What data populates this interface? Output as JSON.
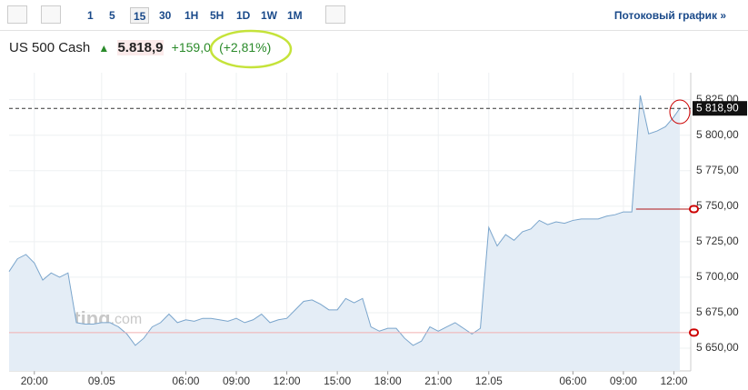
{
  "header": {
    "intervals": [
      "1",
      "5",
      "15",
      "30",
      "1H",
      "5H",
      "1D",
      "1W",
      "1M"
    ],
    "active_interval": 2,
    "stream_link": "Потоковый график »",
    "instrument": "US 500 Cash",
    "price": "5.818,9",
    "change": "+159,0",
    "change_pct": "(+2,81%)"
  },
  "chart_data": {
    "type": "area",
    "watermark": [
      "Investing",
      ".com"
    ],
    "x": [
      -3,
      -2,
      -1,
      0,
      1,
      2,
      3,
      4,
      5,
      6,
      7,
      8,
      9,
      10,
      11,
      12,
      13,
      14,
      15,
      16,
      17,
      18,
      19,
      20,
      21,
      22,
      23,
      24,
      25,
      26,
      27,
      28,
      29,
      30,
      31,
      32,
      33,
      34,
      35,
      36,
      37,
      38,
      39,
      40,
      41,
      42,
      43,
      44,
      45,
      46,
      47,
      48,
      49,
      50,
      51,
      52,
      53,
      54,
      55,
      56,
      57,
      58,
      59,
      60,
      61,
      62,
      63,
      64,
      65,
      66,
      67,
      68,
      69,
      70,
      71,
      72,
      73,
      74,
      75,
      76,
      76.7
    ],
    "series": [
      {
        "name": "US 500 Cash",
        "color": "#7aa5cc",
        "fill": "#e4edf6",
        "values": [
          5704,
          5713,
          5716,
          5710,
          5698,
          5703,
          5700,
          5703,
          5668,
          5667,
          5667,
          5668,
          5668,
          5665,
          5660,
          5652,
          5657,
          5665,
          5668,
          5674,
          5668,
          5670,
          5669,
          5671,
          5671,
          5670,
          5669,
          5671,
          5668,
          5670,
          5674,
          5668,
          5670,
          5671,
          5677,
          5683,
          5684,
          5681,
          5677,
          5677,
          5685,
          5682,
          5685,
          5665,
          5662,
          5664,
          5664,
          5657,
          5652,
          5655,
          5665,
          5662,
          5665,
          5668,
          5664,
          5660,
          5664,
          5735,
          5722,
          5730,
          5726,
          5732,
          5734,
          5740,
          5737,
          5739,
          5738,
          5740,
          5741,
          5741,
          5741,
          5743,
          5744,
          5746,
          5746,
          5828,
          5801,
          5803,
          5806,
          5813,
          5818.9
        ]
      }
    ],
    "xlim": [
      -3,
      78
    ],
    "xticks": [
      {
        "value": 0,
        "label": "20:00"
      },
      {
        "value": 8,
        "label": "09.05"
      },
      {
        "value": 18,
        "label": "06:00"
      },
      {
        "value": 24,
        "label": "09:00"
      },
      {
        "value": 30,
        "label": "12:00"
      },
      {
        "value": 36,
        "label": "15:00"
      },
      {
        "value": 42,
        "label": "18:00"
      },
      {
        "value": 48,
        "label": "21:00"
      },
      {
        "value": 54,
        "label": "12.05"
      },
      {
        "value": 64,
        "label": "06:00"
      },
      {
        "value": 70,
        "label": "09:00"
      },
      {
        "value": 76,
        "label": "12:00"
      }
    ],
    "ylim": [
      5634,
      5844
    ],
    "yticks": [
      {
        "value": 5650,
        "label": "5 650,00"
      },
      {
        "value": 5675,
        "label": "5 675,00"
      },
      {
        "value": 5700,
        "label": "5 700,00"
      },
      {
        "value": 5725,
        "label": "5 725,00"
      },
      {
        "value": 5750,
        "label": "5 750,00"
      },
      {
        "value": 5775,
        "label": "5 775,00"
      },
      {
        "value": 5800,
        "label": "5 800,00"
      },
      {
        "value": 5825,
        "label": "5 825,00"
      }
    ],
    "grid": true,
    "last_value": {
      "value": 5818.9,
      "label": "5 818,90"
    },
    "hlines": [
      {
        "value": 5748,
        "start": 71.5,
        "color": "#b01818"
      },
      {
        "value": 5661,
        "start": -3,
        "color": "#f2b0b0"
      }
    ]
  }
}
